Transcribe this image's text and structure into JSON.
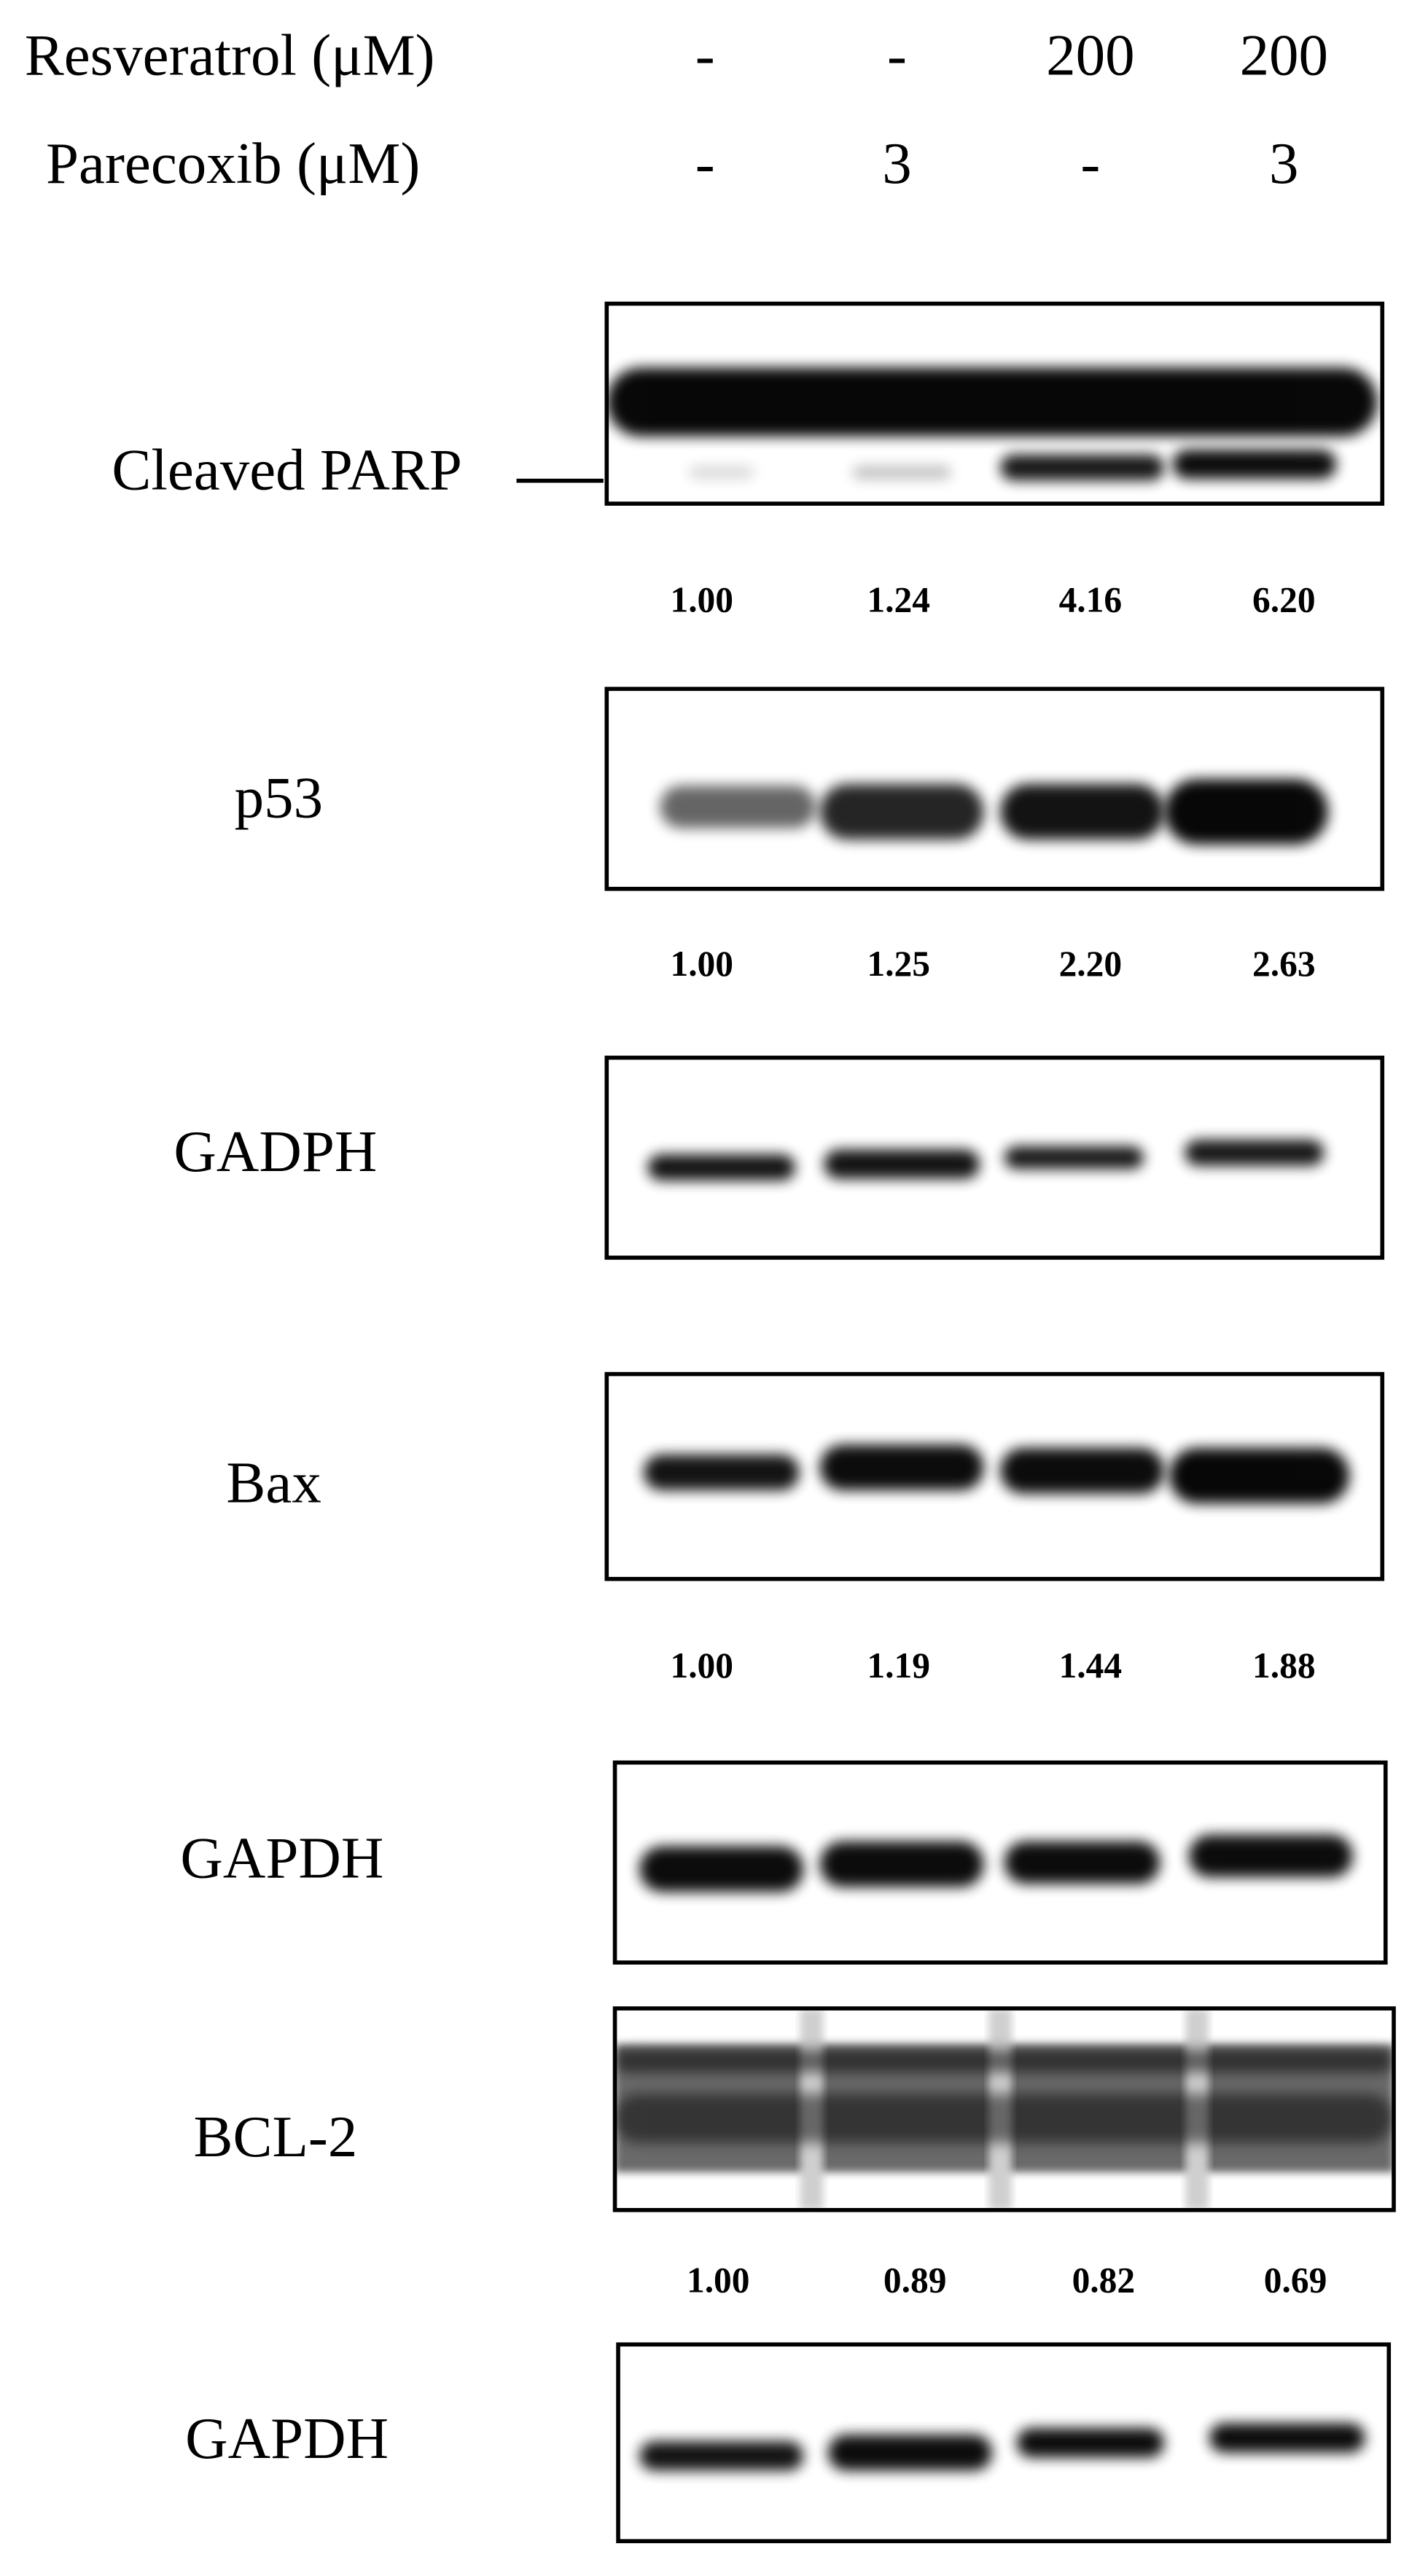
{
  "header": {
    "rows": [
      {
        "label": "Resveratrol (μM)",
        "values": [
          "-",
          "-",
          "200",
          "200"
        ]
      },
      {
        "label": "Parecoxib (μM)",
        "values": [
          "-",
          "3",
          "-",
          "3"
        ]
      }
    ]
  },
  "blots": [
    {
      "label": "Cleaved PARP",
      "quantification": [
        "1.00",
        "1.24",
        "4.16",
        "6.20"
      ]
    },
    {
      "label": "p53",
      "quantification": [
        "1.00",
        "1.25",
        "2.20",
        "2.63"
      ]
    },
    {
      "label": "GADPH"
    },
    {
      "label": "Bax",
      "quantification": [
        "1.00",
        "1.19",
        "1.44",
        "1.88"
      ]
    },
    {
      "label": "GAPDH"
    },
    {
      "label": "BCL-2",
      "quantification": [
        "1.00",
        "0.89",
        "0.82",
        "0.69"
      ]
    },
    {
      "label": "GAPDH"
    }
  ]
}
